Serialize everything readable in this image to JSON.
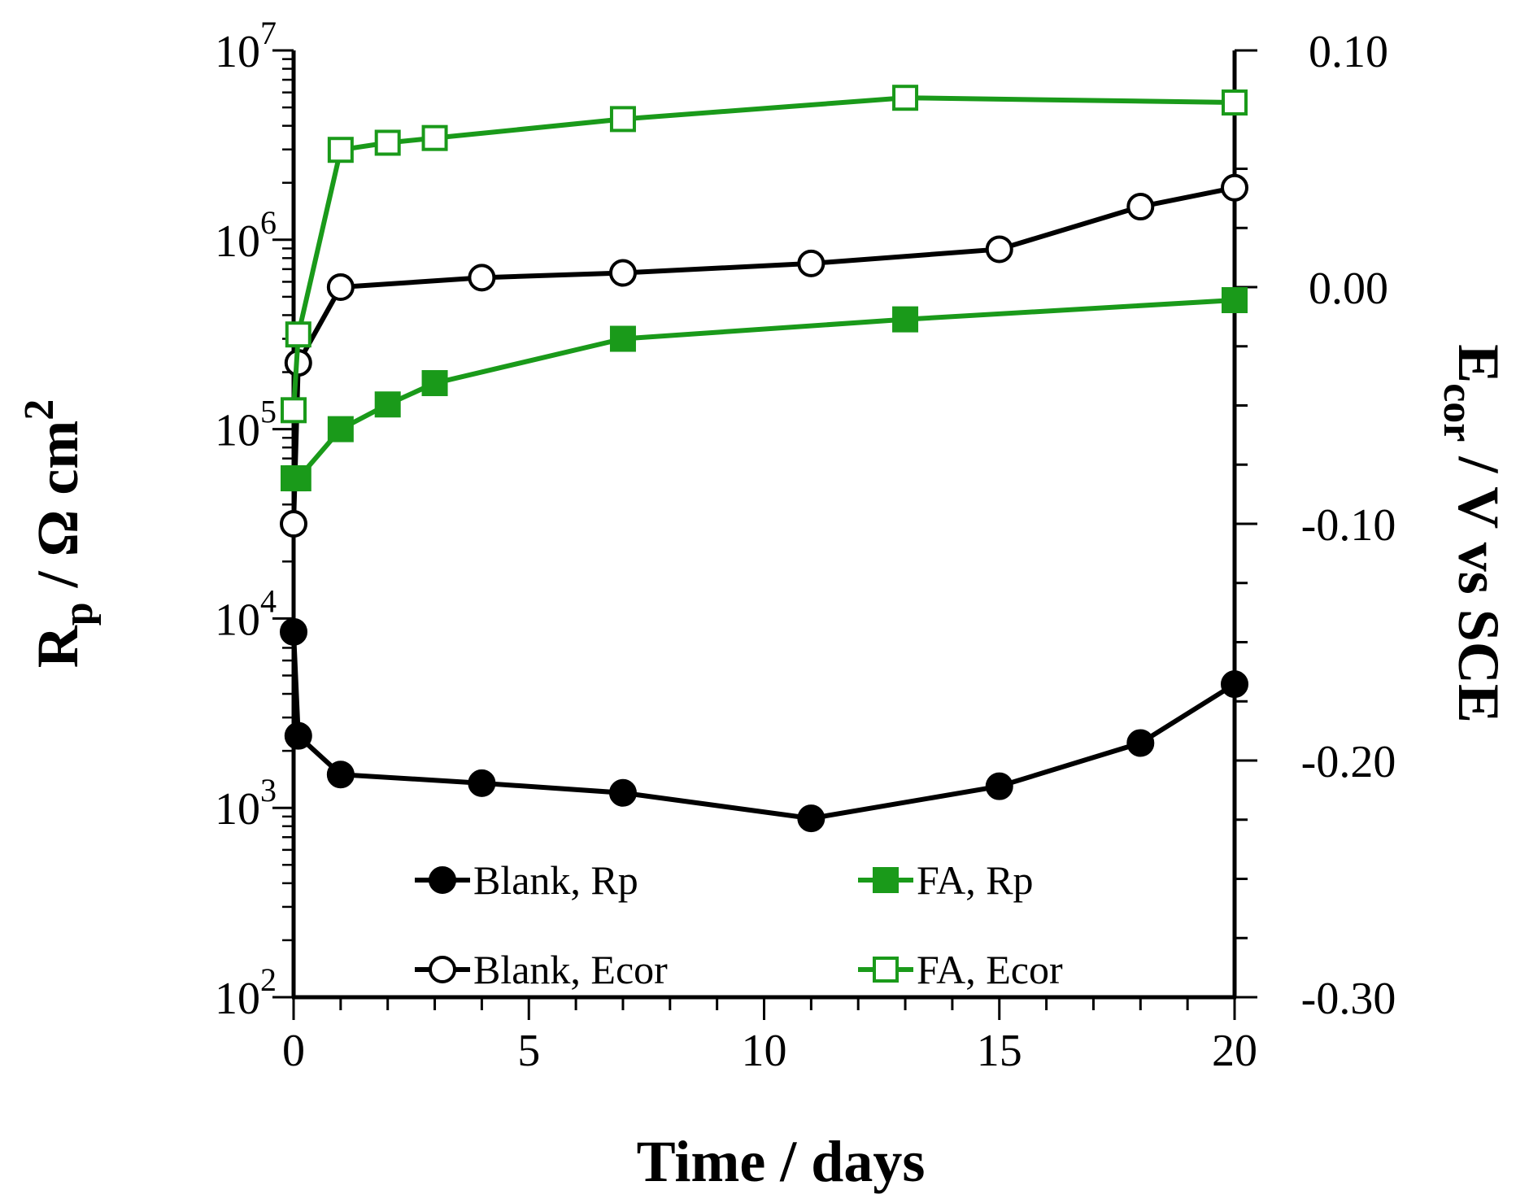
{
  "chart_data": {
    "type": "line",
    "title": "",
    "xlabel": "Time  / days",
    "ylabel_left": "R_p / Ω cm^2",
    "ylabel_right": "E_cor / V vs SCE",
    "ylabel_left_parts": {
      "main": "R",
      "sub": "p",
      "rest": " / Ω cm",
      "sup": "2"
    },
    "ylabel_right_parts": {
      "main": "E",
      "sub": "cor",
      "rest": " / V vs SCE"
    },
    "x_range": [
      0,
      20
    ],
    "y_left_range": [
      100,
      10000000
    ],
    "y_left_scale": "log",
    "y_right_range": [
      -0.3,
      0.1
    ],
    "x_ticks": [
      "0",
      "5",
      "10",
      "15",
      "20"
    ],
    "y_left_ticks": [
      {
        "base": "10",
        "exp": "2",
        "value": 100
      },
      {
        "base": "10",
        "exp": "3",
        "value": 1000
      },
      {
        "base": "10",
        "exp": "4",
        "value": 10000
      },
      {
        "base": "10",
        "exp": "5",
        "value": 100000
      },
      {
        "base": "10",
        "exp": "6",
        "value": 1000000
      },
      {
        "base": "10",
        "exp": "7",
        "value": 10000000
      }
    ],
    "y_right_ticks": [
      {
        "label": "0.10",
        "value": 0.1
      },
      {
        "label": "0.00",
        "value": 0.0
      },
      {
        "label": "-0.10",
        "value": -0.1
      },
      {
        "label": "-0.20",
        "value": -0.2
      },
      {
        "label": "-0.30",
        "value": -0.3
      }
    ],
    "series": [
      {
        "name": "Blank, Rp",
        "axis": "left",
        "color": "#000000",
        "marker": "circle",
        "filled": true,
        "x": [
          0,
          0.1,
          1,
          4,
          7,
          11,
          15,
          18,
          20
        ],
        "values": [
          8500,
          2400,
          1500,
          1350,
          1200,
          880,
          1300,
          2200,
          4500
        ]
      },
      {
        "name": "FA, Rp",
        "axis": "left",
        "color": "#1a9a1a",
        "marker": "square",
        "filled": true,
        "x": [
          0,
          0.1,
          1,
          2,
          3,
          7,
          13,
          20
        ],
        "values": [
          55000,
          55000,
          100000,
          135000,
          175000,
          300000,
          380000,
          480000
        ]
      },
      {
        "name": "Blank, Ecor",
        "axis": "right",
        "color": "#000000",
        "marker": "circle",
        "filled": false,
        "x": [
          0,
          0.1,
          1,
          4,
          7,
          11,
          15,
          18,
          20
        ],
        "values": [
          -0.1,
          -0.032,
          0.0,
          0.004,
          0.006,
          0.01,
          0.016,
          0.034,
          0.042
        ]
      },
      {
        "name": "FA, Ecor",
        "axis": "right",
        "color": "#1a9a1a",
        "marker": "square",
        "filled": false,
        "x": [
          0,
          0.1,
          1,
          2,
          3,
          7,
          13,
          20
        ],
        "values": [
          -0.052,
          -0.02,
          0.058,
          0.061,
          0.063,
          0.071,
          0.08,
          0.078
        ]
      }
    ],
    "legend_position": "bottom-center",
    "grid": false
  }
}
